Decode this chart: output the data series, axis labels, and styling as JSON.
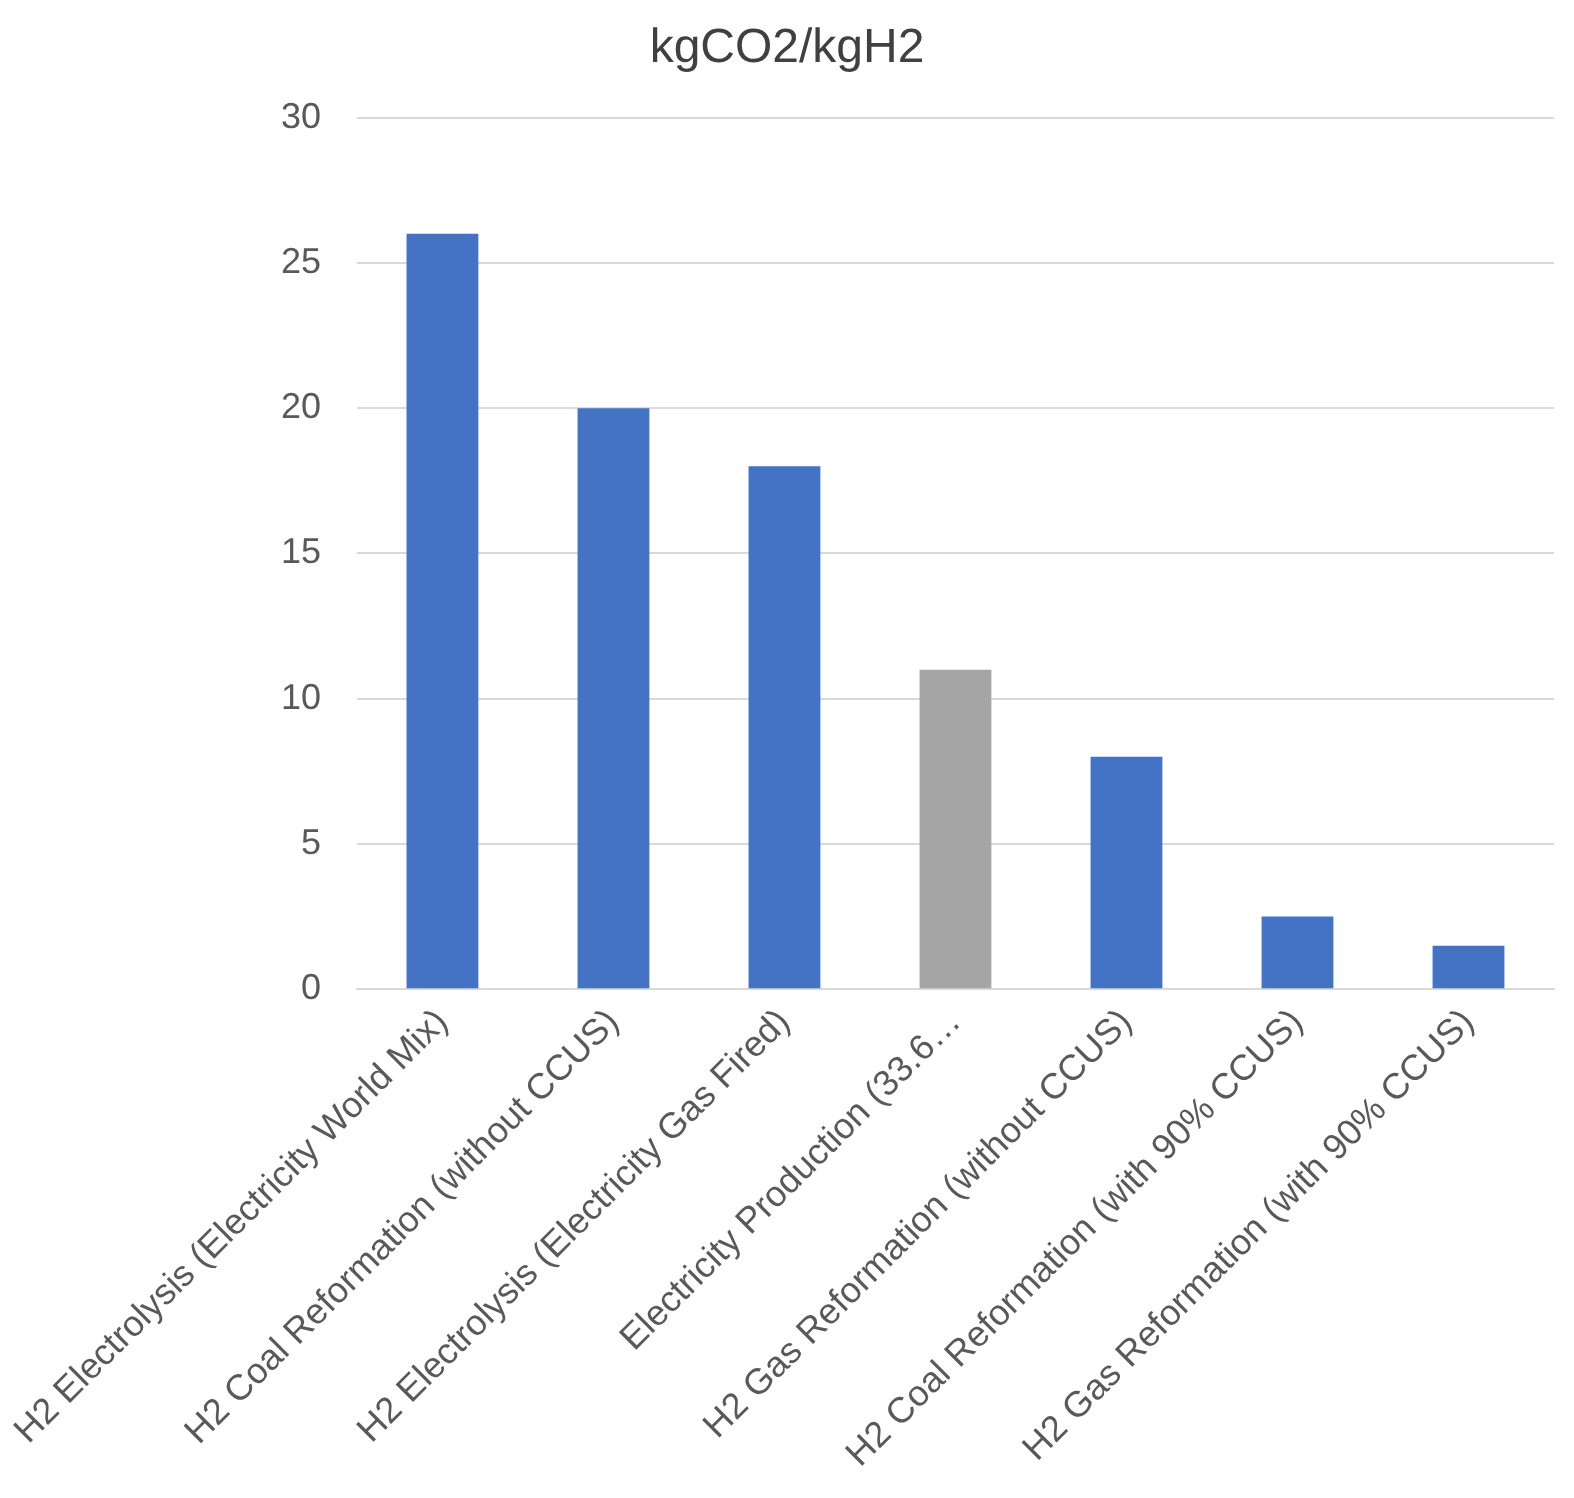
{
  "chart_data": {
    "type": "bar",
    "title": "kgCO2/kgH2",
    "categories": [
      "H2 Electrolysis (Electricity World Mix)",
      "H2 Coal Reformation (without CCUS)",
      "H2 Electrolysis (Electricity Gas Fired)",
      "Electricity Production (33.6…",
      "H2 Gas Reformation (without CCUS)",
      "H2 Coal Reformation (with 90% CCUS)",
      "H2 Gas Reformation (with 90% CCUS)"
    ],
    "values": [
      26,
      20,
      18,
      11,
      8,
      2.5,
      1.5
    ],
    "colors": [
      "#4472c4",
      "#4472c4",
      "#4472c4",
      "#a5a5a5",
      "#4472c4",
      "#4472c4",
      "#4472c4"
    ],
    "ylim": [
      0,
      30
    ],
    "yticks": [
      0,
      5,
      10,
      15,
      20,
      25,
      30
    ],
    "grid": "y",
    "legend": false
  }
}
